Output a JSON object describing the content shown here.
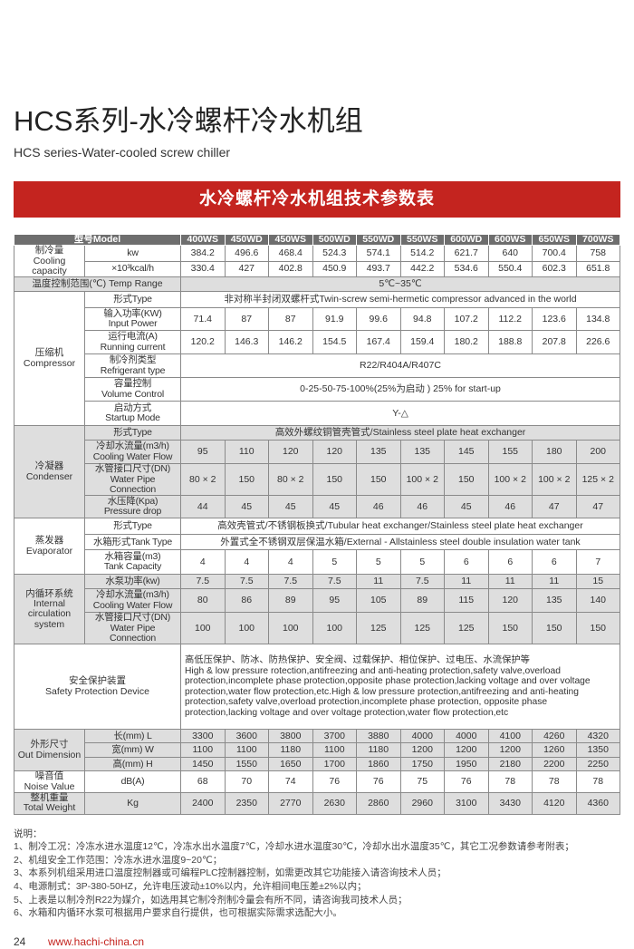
{
  "header": {
    "title": "HCS系列-水冷螺杆冷水机组",
    "subtitle": "HCS series-Water-cooled screw chiller",
    "banner": "水冷螺杆冷水机组技术参数表"
  },
  "table": {
    "model_label": "型号Model",
    "models": [
      "400WS",
      "450WD",
      "450WS",
      "500WD",
      "550WD",
      "550WS",
      "600WD",
      "600WS",
      "650WS",
      "700WS"
    ],
    "sections": [
      {
        "group": "制冷量\nCooling capacity",
        "grey": false,
        "rows": [
          {
            "sub": "kw",
            "values": [
              "384.2",
              "496.6",
              "468.4",
              "524.3",
              "574.1",
              "514.2",
              "621.7",
              "640",
              "700.4",
              "758"
            ]
          },
          {
            "sub": "×10³kcal/h",
            "values": [
              "330.4",
              "427",
              "402.8",
              "450.9",
              "493.7",
              "442.2",
              "534.6",
              "550.4",
              "602.3",
              "651.8"
            ]
          }
        ]
      },
      {
        "full": "温度控制范围(℃) Temp Range",
        "grey": true,
        "span": "5℃~35℃"
      },
      {
        "group": "压缩机\nCompressor",
        "grey": false,
        "rows": [
          {
            "sub": "形式Type",
            "span": "非对称半封闭双螺杆式Twin-screw semi-hermetic compressor advanced in the world"
          },
          {
            "sub": "输入功率(KW)\nInput Power",
            "values": [
              "71.4",
              "87",
              "87",
              "91.9",
              "99.6",
              "94.8",
              "107.2",
              "112.2",
              "123.6",
              "134.8"
            ]
          },
          {
            "sub": "运行电流(A)\nRunning current",
            "values": [
              "120.2",
              "146.3",
              "146.2",
              "154.5",
              "167.4",
              "159.4",
              "180.2",
              "188.8",
              "207.8",
              "226.6"
            ]
          },
          {
            "sub": "制冷剂类型\nRefrigerant type",
            "span": "R22/R404A/R407C"
          },
          {
            "sub": "容量控制\nVolume Control",
            "span": "0-25-50-75-100%(25%为启动 ) 25% for start-up"
          },
          {
            "sub": "启动方式\nStartup Mode",
            "span": "Y-△"
          }
        ]
      },
      {
        "group": "冷凝器\nCondenser",
        "grey": true,
        "rows": [
          {
            "sub": "形式Type",
            "span": "高效外螺纹铜管壳管式/Stainless steel plate heat exchanger"
          },
          {
            "sub": "冷却水流量(m3/h)\nCooling Water Flow",
            "values": [
              "95",
              "110",
              "120",
              "120",
              "135",
              "135",
              "145",
              "155",
              "180",
              "200"
            ]
          },
          {
            "sub": "水管接口尺寸(DN)\nWater Pipe Connection",
            "values": [
              "80 × 2",
              "150",
              "80 × 2",
              "150",
              "150",
              "100 × 2",
              "150",
              "100 × 2",
              "100 × 2",
              "125 × 2"
            ]
          },
          {
            "sub": "水压降(Kpa)\nPressure drop",
            "values": [
              "44",
              "45",
              "45",
              "45",
              "46",
              "46",
              "45",
              "46",
              "47",
              "47"
            ]
          }
        ]
      },
      {
        "group": "蒸发器\nEvaporator",
        "grey": false,
        "rows": [
          {
            "sub": "形式Type",
            "span": "高效壳管式/不锈钢板换式/Tubular heat exchanger/Stainless steel plate heat exchanger"
          },
          {
            "sub": "水箱形式Tank Type",
            "span": "外置式全不锈钢双层保温水箱/External - Allstainless steel double insulation water tank"
          },
          {
            "sub": "水箱容量(m3)\nTank Capacity",
            "values": [
              "4",
              "4",
              "4",
              "5",
              "5",
              "5",
              "6",
              "6",
              "6",
              "7"
            ]
          }
        ]
      },
      {
        "group": "内循环系统\nInternal\ncirculation\nsystem",
        "grey": true,
        "rows": [
          {
            "sub": "水泵功率(kw)",
            "values": [
              "7.5",
              "7.5",
              "7.5",
              "7.5",
              "11",
              "7.5",
              "11",
              "11",
              "11",
              "15"
            ]
          },
          {
            "sub": "冷却水流量(m3/h)\nCooling Water Flow",
            "values": [
              "80",
              "86",
              "89",
              "95",
              "105",
              "89",
              "115",
              "120",
              "135",
              "140"
            ]
          },
          {
            "sub": "水管接口尺寸(DN)\nWater Pipe Connection",
            "values": [
              "100",
              "100",
              "100",
              "100",
              "125",
              "125",
              "125",
              "150",
              "150",
              "150"
            ]
          }
        ]
      },
      {
        "full": "安全保护装置\nSafety Protection Device",
        "grey": false,
        "safety": true,
        "span": "高低压保护、防冰、防热保护、安全阀、过载保护、相位保护、过电压、水流保护等\nHigh & low pressure rotection,antifreezing and anti-heating protection,safety valve,overload protection,incomplete phase protection,opposite phase protection,lacking voltage and over voltage protection,water flow protection,etc.High & low pressure protection,antifreezing and anti-heating protection,safety valve,overload protection,incomplete phase protection, opposite phase protection,lacking voltage and over voltage protection,water flow protection,etc"
      },
      {
        "group": "外形尺寸\nOut Dimension",
        "grey": true,
        "rows": [
          {
            "sub": "长(mm)  L",
            "values": [
              "3300",
              "3600",
              "3800",
              "3700",
              "3880",
              "4000",
              "4000",
              "4100",
              "4260",
              "4320"
            ]
          },
          {
            "sub": "宽(mm)  W",
            "values": [
              "1100",
              "1100",
              "1180",
              "1100",
              "1180",
              "1200",
              "1200",
              "1200",
              "1260",
              "1350"
            ]
          },
          {
            "sub": "高(mm)  H",
            "values": [
              "1450",
              "1550",
              "1650",
              "1700",
              "1860",
              "1750",
              "1950",
              "2180",
              "2200",
              "2250"
            ]
          }
        ]
      },
      {
        "group": "噪音值\nNoise Value",
        "grey": false,
        "rows": [
          {
            "sub": "dB(A)",
            "values": [
              "68",
              "70",
              "74",
              "76",
              "76",
              "75",
              "76",
              "78",
              "78",
              "78"
            ]
          }
        ]
      },
      {
        "group": "整机重量\nTotal Weight",
        "grey": true,
        "rows": [
          {
            "sub": "Kg",
            "values": [
              "2400",
              "2350",
              "2770",
              "2630",
              "2860",
              "2960",
              "3100",
              "3430",
              "4120",
              "4360"
            ]
          }
        ]
      }
    ]
  },
  "notes": {
    "heading": "说明：",
    "items": [
      "1、制冷工况：冷冻水进水温度12℃，冷冻水出水温度7℃，冷却水进水温度30℃，冷却水出水温度35℃，其它工况参数请参考附表；",
      "2、机组安全工作范围：冷冻水进水温度9~20℃；",
      "3、本系列机组采用进口温度控制器或可编程PLC控制器控制，如需更改其它功能接入请咨询技术人员；",
      "4、电源制式：3P-380-50HZ，允许电压波动±10%以内，允许相间电压差±2%以内；",
      "5、上表是以制冷剂R22为媒介，如选用其它制冷剂制冷量会有所不同，请咨询我司技术人员；",
      "6、水箱和内循环水泵可根据用户要求自行提供，也可根据实际需求选配大小。"
    ]
  },
  "footer": {
    "page": "24",
    "url": "www.hachi-china.cn"
  },
  "colors": {
    "accent": "#c4241f",
    "header_bg": "#6e6e6e",
    "grey_row": "#dedede"
  }
}
